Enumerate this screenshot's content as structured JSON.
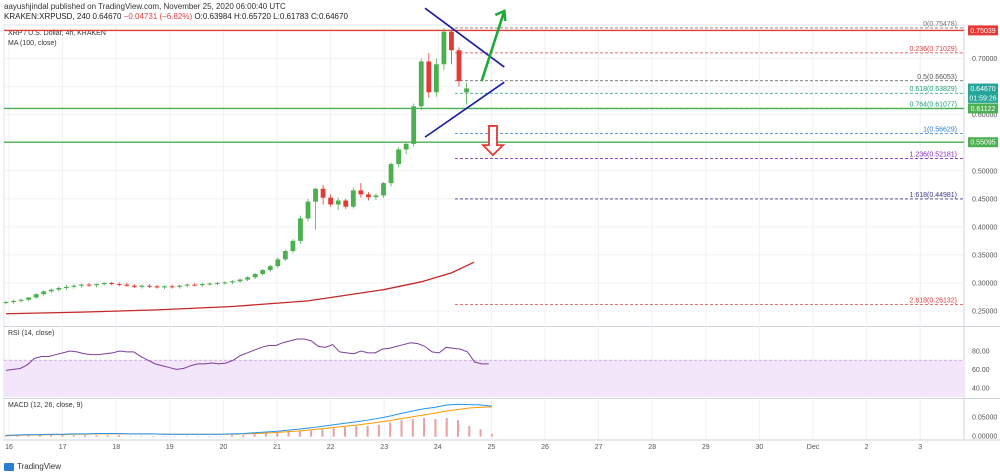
{
  "header": {
    "publish_text": "aayushjindal published on TradingView.com, November 25, 2020 06:00:40 UTC",
    "symbol_line": "KRAKEN:XRPUSD, 240",
    "ohlc": {
      "last": "0.64670",
      "change": "−0.04731 (−6.82%)",
      "O": "0.63984",
      "H": "0.65720",
      "L": "0.61783",
      "C": "0.64670"
    }
  },
  "footer": {
    "brand": "TradingView"
  },
  "chart_data": [
    {
      "type": "line",
      "title": "XRP / U.S. Dollar, 4h, KRAKEN",
      "indicator_label": "MA (100, close)",
      "currency": "USD",
      "currency_suffix": " ",
      "x_ticks": [
        "16",
        "17",
        "18",
        "19",
        "20",
        "21",
        "22",
        "23",
        "24",
        "25",
        "26",
        "27",
        "28",
        "29",
        "30",
        "Dec",
        "2",
        "3"
      ],
      "y_ticks": [
        0.25,
        0.3,
        0.35,
        0.4,
        0.45,
        0.5,
        0.55,
        0.6,
        0.65,
        0.7
      ],
      "ylim": [
        0.225,
        0.76
      ],
      "fib_levels": [
        {
          "ratio": "0",
          "value": "0.75478",
          "y": 0.75478,
          "color": "#777777"
        },
        {
          "ratio": "0.236",
          "value": "0.71029",
          "y": 0.71029,
          "color": "#e04040"
        },
        {
          "ratio": "0.5",
          "value": "0.66053",
          "y": 0.66053,
          "color": "#555555"
        },
        {
          "ratio": "0.618",
          "value": "0.63829",
          "y": 0.63829,
          "color": "#1b9e7a"
        },
        {
          "ratio": "0.764",
          "value": "0.61077",
          "y": 0.61077,
          "color": "#1b9e7a"
        },
        {
          "ratio": "1",
          "value": "0.56629",
          "y": 0.56629,
          "color": "#2a7fd0"
        },
        {
          "ratio": "1.236",
          "value": "0.52181",
          "y": 0.52181,
          "color": "#8a2bbf"
        },
        {
          "ratio": "1.618",
          "value": "0.44981",
          "y": 0.44981,
          "color": "#3a3a8a"
        },
        {
          "ratio": "2.618",
          "value": "0.26132",
          "y": 0.26132,
          "color": "#e04040"
        }
      ],
      "price_badges": [
        {
          "value": "0.75039",
          "y": 0.75039,
          "color": "#e53935"
        },
        {
          "value": "0.64670",
          "y": 0.6467,
          "color": "#26a69a"
        },
        {
          "value": "01:59:26",
          "y": 0.63,
          "color": "#26a69a"
        },
        {
          "value": "0.61122",
          "y": 0.61122,
          "color": "#4caf50"
        },
        {
          "value": "0.55095",
          "y": 0.55095,
          "color": "#4caf50"
        }
      ],
      "horizontal_lines": [
        {
          "y": 0.75039,
          "color": "#e53935"
        },
        {
          "y": 0.61122,
          "color": "#4caf50"
        },
        {
          "y": 0.55095,
          "color": "#4caf50"
        }
      ],
      "candles": [
        [
          0.265,
          0.268,
          0.262,
          0.266
        ],
        [
          0.266,
          0.27,
          0.263,
          0.268
        ],
        [
          0.268,
          0.272,
          0.265,
          0.27
        ],
        [
          0.27,
          0.275,
          0.268,
          0.274
        ],
        [
          0.274,
          0.282,
          0.272,
          0.28
        ],
        [
          0.28,
          0.287,
          0.277,
          0.285
        ],
        [
          0.285,
          0.29,
          0.282,
          0.288
        ],
        [
          0.288,
          0.294,
          0.285,
          0.291
        ],
        [
          0.291,
          0.296,
          0.288,
          0.293
        ],
        [
          0.293,
          0.298,
          0.29,
          0.295
        ],
        [
          0.295,
          0.299,
          0.292,
          0.297
        ],
        [
          0.297,
          0.3,
          0.293,
          0.296
        ],
        [
          0.296,
          0.299,
          0.292,
          0.298
        ],
        [
          0.298,
          0.301,
          0.295,
          0.3
        ],
        [
          0.3,
          0.302,
          0.296,
          0.298
        ],
        [
          0.298,
          0.301,
          0.294,
          0.297
        ],
        [
          0.297,
          0.3,
          0.293,
          0.295
        ],
        [
          0.295,
          0.298,
          0.291,
          0.293
        ],
        [
          0.293,
          0.297,
          0.29,
          0.295
        ],
        [
          0.295,
          0.298,
          0.291,
          0.294
        ],
        [
          0.294,
          0.297,
          0.29,
          0.292
        ],
        [
          0.292,
          0.296,
          0.289,
          0.294
        ],
        [
          0.294,
          0.297,
          0.29,
          0.293
        ],
        [
          0.293,
          0.297,
          0.29,
          0.295
        ],
        [
          0.295,
          0.299,
          0.292,
          0.297
        ],
        [
          0.297,
          0.3,
          0.294,
          0.296
        ],
        [
          0.296,
          0.3,
          0.293,
          0.298
        ],
        [
          0.298,
          0.301,
          0.295,
          0.299
        ],
        [
          0.299,
          0.302,
          0.296,
          0.3
        ],
        [
          0.3,
          0.303,
          0.297,
          0.301
        ],
        [
          0.301,
          0.305,
          0.298,
          0.303
        ],
        [
          0.303,
          0.308,
          0.3,
          0.306
        ],
        [
          0.306,
          0.312,
          0.303,
          0.31
        ],
        [
          0.31,
          0.318,
          0.307,
          0.316
        ],
        [
          0.316,
          0.325,
          0.313,
          0.323
        ],
        [
          0.323,
          0.332,
          0.32,
          0.33
        ],
        [
          0.33,
          0.345,
          0.327,
          0.342
        ],
        [
          0.342,
          0.36,
          0.339,
          0.357
        ],
        [
          0.357,
          0.378,
          0.353,
          0.375
        ],
        [
          0.375,
          0.42,
          0.37,
          0.415
        ],
        [
          0.415,
          0.45,
          0.41,
          0.445
        ],
        [
          0.445,
          0.47,
          0.395,
          0.468
        ],
        [
          0.468,
          0.475,
          0.44,
          0.452
        ],
        [
          0.452,
          0.458,
          0.436,
          0.44
        ],
        [
          0.44,
          0.452,
          0.43,
          0.447
        ],
        [
          0.447,
          0.45,
          0.432,
          0.436
        ],
        [
          0.436,
          0.47,
          0.433,
          0.465
        ],
        [
          0.465,
          0.478,
          0.452,
          0.458
        ],
        [
          0.458,
          0.462,
          0.447,
          0.453
        ],
        [
          0.453,
          0.46,
          0.448,
          0.456
        ],
        [
          0.456,
          0.48,
          0.452,
          0.478
        ],
        [
          0.478,
          0.515,
          0.472,
          0.512
        ],
        [
          0.512,
          0.542,
          0.506,
          0.538
        ],
        [
          0.538,
          0.55,
          0.53,
          0.548
        ],
        [
          0.548,
          0.62,
          0.543,
          0.615
        ],
        [
          0.615,
          0.7,
          0.608,
          0.695
        ],
        [
          0.695,
          0.71,
          0.63,
          0.64
        ],
        [
          0.64,
          0.7,
          0.632,
          0.69
        ],
        [
          0.69,
          0.755,
          0.68,
          0.748
        ],
        [
          0.748,
          0.752,
          0.69,
          0.715
        ],
        [
          0.715,
          0.72,
          0.65,
          0.66
        ],
        [
          0.64,
          0.657,
          0.618,
          0.647
        ]
      ],
      "ma_points": [
        [
          0,
          0.245
        ],
        [
          10,
          0.248
        ],
        [
          20,
          0.252
        ],
        [
          30,
          0.258
        ],
        [
          40,
          0.268
        ],
        [
          50,
          0.288
        ],
        [
          55,
          0.302
        ],
        [
          59,
          0.318
        ],
        [
          62,
          0.337
        ]
      ],
      "triangle": {
        "upper": [
          [
            55.5,
            0.79
          ],
          [
            66,
            0.685
          ]
        ],
        "lower": [
          [
            55.5,
            0.56
          ],
          [
            66,
            0.658
          ]
        ]
      },
      "arrow_up": {
        "from": [
          63,
          0.66
        ],
        "to": [
          66,
          0.785
        ]
      },
      "arrow_down": {
        "at": [
          64.5,
          0.58
        ],
        "to": 0.528
      }
    },
    {
      "type": "line",
      "title": "RSI (14, close)",
      "y_ticks": [
        40,
        60,
        80
      ],
      "ylim": [
        30,
        105
      ],
      "band": [
        30,
        70
      ],
      "values": [
        59,
        60,
        61,
        65,
        72,
        74,
        74,
        76,
        78,
        80,
        79,
        77,
        76,
        76,
        77,
        78,
        80,
        79,
        79,
        74,
        70,
        66,
        64,
        62,
        60,
        61,
        64,
        66,
        66,
        67,
        66,
        67,
        70,
        75,
        78,
        81,
        84,
        86,
        86,
        89,
        91,
        93,
        93,
        91,
        85,
        84,
        87,
        79,
        78,
        77,
        80,
        78,
        78,
        82,
        83,
        85,
        87,
        89,
        88,
        85,
        79,
        78,
        84,
        83,
        82,
        79,
        68,
        66,
        66
      ]
    },
    {
      "type": "line",
      "title": "MACD (12, 26, close, 9)",
      "y_ticks": [
        0.0,
        0.05
      ],
      "ylim": [
        -0.01,
        0.095
      ],
      "macd": [
        0.002,
        0.003,
        0.004,
        0.004,
        0.005,
        0.005,
        0.006,
        0.006,
        0.007,
        0.007,
        0.007,
        0.006,
        0.006,
        0.006,
        0.005,
        0.005,
        0.005,
        0.005,
        0.005,
        0.005,
        0.006,
        0.007,
        0.009,
        0.011,
        0.013,
        0.016,
        0.019,
        0.022,
        0.026,
        0.03,
        0.034,
        0.038,
        0.042,
        0.047,
        0.053,
        0.06,
        0.066,
        0.072,
        0.076,
        0.082,
        0.084,
        0.083,
        0.082,
        0.079
      ],
      "signal": [
        0.001,
        0.002,
        0.003,
        0.003,
        0.004,
        0.004,
        0.005,
        0.005,
        0.006,
        0.006,
        0.006,
        0.006,
        0.006,
        0.006,
        0.005,
        0.005,
        0.005,
        0.005,
        0.005,
        0.005,
        0.005,
        0.006,
        0.007,
        0.008,
        0.01,
        0.012,
        0.014,
        0.017,
        0.02,
        0.023,
        0.026,
        0.029,
        0.033,
        0.037,
        0.041,
        0.046,
        0.051,
        0.056,
        0.061,
        0.066,
        0.07,
        0.074,
        0.076,
        0.077
      ]
    }
  ]
}
